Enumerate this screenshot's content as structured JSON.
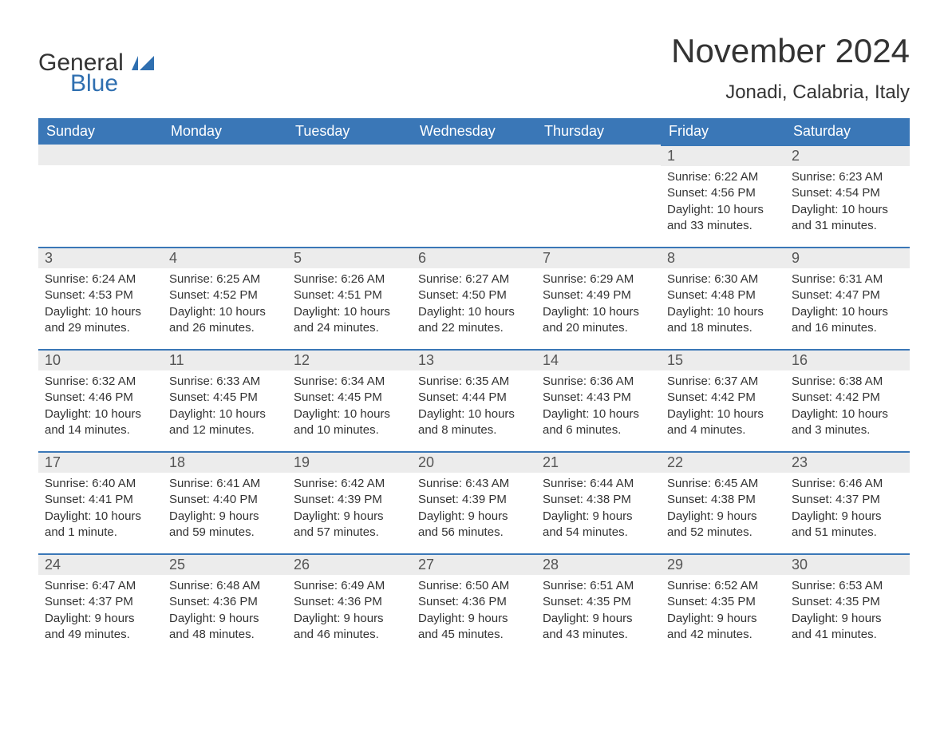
{
  "logo": {
    "word1": "General",
    "word2": "Blue"
  },
  "title": "November 2024",
  "location": "Jonadi, Calabria, Italy",
  "colors": {
    "header_bg": "#3a77b7",
    "header_text": "#ffffff",
    "daynum_bg": "#ececec",
    "row_border": "#3a77b7",
    "text": "#333333",
    "logo_blue": "#2f6fb0"
  },
  "weekdays": [
    "Sunday",
    "Monday",
    "Tuesday",
    "Wednesday",
    "Thursday",
    "Friday",
    "Saturday"
  ],
  "weeks": [
    [
      null,
      null,
      null,
      null,
      null,
      {
        "n": "1",
        "sunrise": "6:22 AM",
        "sunset": "4:56 PM",
        "daylight": "10 hours and 33 minutes."
      },
      {
        "n": "2",
        "sunrise": "6:23 AM",
        "sunset": "4:54 PM",
        "daylight": "10 hours and 31 minutes."
      }
    ],
    [
      {
        "n": "3",
        "sunrise": "6:24 AM",
        "sunset": "4:53 PM",
        "daylight": "10 hours and 29 minutes."
      },
      {
        "n": "4",
        "sunrise": "6:25 AM",
        "sunset": "4:52 PM",
        "daylight": "10 hours and 26 minutes."
      },
      {
        "n": "5",
        "sunrise": "6:26 AM",
        "sunset": "4:51 PM",
        "daylight": "10 hours and 24 minutes."
      },
      {
        "n": "6",
        "sunrise": "6:27 AM",
        "sunset": "4:50 PM",
        "daylight": "10 hours and 22 minutes."
      },
      {
        "n": "7",
        "sunrise": "6:29 AM",
        "sunset": "4:49 PM",
        "daylight": "10 hours and 20 minutes."
      },
      {
        "n": "8",
        "sunrise": "6:30 AM",
        "sunset": "4:48 PM",
        "daylight": "10 hours and 18 minutes."
      },
      {
        "n": "9",
        "sunrise": "6:31 AM",
        "sunset": "4:47 PM",
        "daylight": "10 hours and 16 minutes."
      }
    ],
    [
      {
        "n": "10",
        "sunrise": "6:32 AM",
        "sunset": "4:46 PM",
        "daylight": "10 hours and 14 minutes."
      },
      {
        "n": "11",
        "sunrise": "6:33 AM",
        "sunset": "4:45 PM",
        "daylight": "10 hours and 12 minutes."
      },
      {
        "n": "12",
        "sunrise": "6:34 AM",
        "sunset": "4:45 PM",
        "daylight": "10 hours and 10 minutes."
      },
      {
        "n": "13",
        "sunrise": "6:35 AM",
        "sunset": "4:44 PM",
        "daylight": "10 hours and 8 minutes."
      },
      {
        "n": "14",
        "sunrise": "6:36 AM",
        "sunset": "4:43 PM",
        "daylight": "10 hours and 6 minutes."
      },
      {
        "n": "15",
        "sunrise": "6:37 AM",
        "sunset": "4:42 PM",
        "daylight": "10 hours and 4 minutes."
      },
      {
        "n": "16",
        "sunrise": "6:38 AM",
        "sunset": "4:42 PM",
        "daylight": "10 hours and 3 minutes."
      }
    ],
    [
      {
        "n": "17",
        "sunrise": "6:40 AM",
        "sunset": "4:41 PM",
        "daylight": "10 hours and 1 minute."
      },
      {
        "n": "18",
        "sunrise": "6:41 AM",
        "sunset": "4:40 PM",
        "daylight": "9 hours and 59 minutes."
      },
      {
        "n": "19",
        "sunrise": "6:42 AM",
        "sunset": "4:39 PM",
        "daylight": "9 hours and 57 minutes."
      },
      {
        "n": "20",
        "sunrise": "6:43 AM",
        "sunset": "4:39 PM",
        "daylight": "9 hours and 56 minutes."
      },
      {
        "n": "21",
        "sunrise": "6:44 AM",
        "sunset": "4:38 PM",
        "daylight": "9 hours and 54 minutes."
      },
      {
        "n": "22",
        "sunrise": "6:45 AM",
        "sunset": "4:38 PM",
        "daylight": "9 hours and 52 minutes."
      },
      {
        "n": "23",
        "sunrise": "6:46 AM",
        "sunset": "4:37 PM",
        "daylight": "9 hours and 51 minutes."
      }
    ],
    [
      {
        "n": "24",
        "sunrise": "6:47 AM",
        "sunset": "4:37 PM",
        "daylight": "9 hours and 49 minutes."
      },
      {
        "n": "25",
        "sunrise": "6:48 AM",
        "sunset": "4:36 PM",
        "daylight": "9 hours and 48 minutes."
      },
      {
        "n": "26",
        "sunrise": "6:49 AM",
        "sunset": "4:36 PM",
        "daylight": "9 hours and 46 minutes."
      },
      {
        "n": "27",
        "sunrise": "6:50 AM",
        "sunset": "4:36 PM",
        "daylight": "9 hours and 45 minutes."
      },
      {
        "n": "28",
        "sunrise": "6:51 AM",
        "sunset": "4:35 PM",
        "daylight": "9 hours and 43 minutes."
      },
      {
        "n": "29",
        "sunrise": "6:52 AM",
        "sunset": "4:35 PM",
        "daylight": "9 hours and 42 minutes."
      },
      {
        "n": "30",
        "sunrise": "6:53 AM",
        "sunset": "4:35 PM",
        "daylight": "9 hours and 41 minutes."
      }
    ]
  ],
  "labels": {
    "sunrise": "Sunrise:",
    "sunset": "Sunset:",
    "daylight": "Daylight:"
  }
}
